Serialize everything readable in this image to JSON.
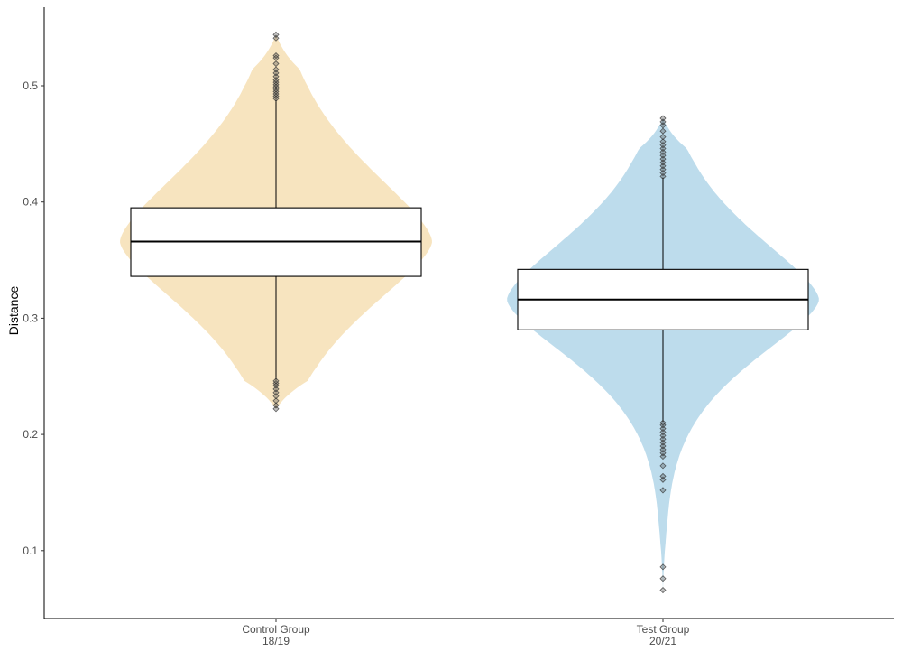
{
  "chart_data": {
    "type": "violin",
    "title": "",
    "xlabel": "",
    "ylabel": "Distance",
    "ylim": [
      0.04,
      0.555
    ],
    "yticks": [
      "0.1",
      "0.2",
      "0.3",
      "0.4",
      "0.5"
    ],
    "grid": false,
    "legend": "none",
    "categories": [
      {
        "label_lines": [
          "Control Group",
          "18/19"
        ],
        "fill": "#f7e4bf",
        "box": {
          "q1": 0.336,
          "median": 0.366,
          "q3": 0.395,
          "whisker_low": 0.247,
          "whisker_high": 0.488
        },
        "violin_range": [
          0.222,
          0.544
        ],
        "outliers": [
          0.222,
          0.225,
          0.229,
          0.233,
          0.236,
          0.239,
          0.242,
          0.244,
          0.246,
          0.489,
          0.491,
          0.493,
          0.495,
          0.497,
          0.499,
          0.501,
          0.503,
          0.505,
          0.508,
          0.511,
          0.514,
          0.519,
          0.524,
          0.526,
          0.541,
          0.544
        ]
      },
      {
        "label_lines": [
          "Test Group",
          "20/21"
        ],
        "fill": "#bddcec",
        "box": {
          "q1": 0.29,
          "median": 0.316,
          "q3": 0.342,
          "whisker_low": 0.211,
          "whisker_high": 0.421
        },
        "violin_range": [
          0.066,
          0.472
        ],
        "outliers": [
          0.066,
          0.076,
          0.086,
          0.152,
          0.161,
          0.164,
          0.173,
          0.181,
          0.184,
          0.187,
          0.19,
          0.193,
          0.196,
          0.199,
          0.202,
          0.205,
          0.208,
          0.21,
          0.422,
          0.425,
          0.428,
          0.431,
          0.434,
          0.437,
          0.44,
          0.443,
          0.446,
          0.449,
          0.452,
          0.456,
          0.461,
          0.466,
          0.469,
          0.472
        ]
      }
    ],
    "colors": {
      "axis": "#000000",
      "text": "#4d4d4d",
      "outlier": "#4d4d4d",
      "box_fill": "#ffffff",
      "box_stroke": "#000000"
    }
  }
}
